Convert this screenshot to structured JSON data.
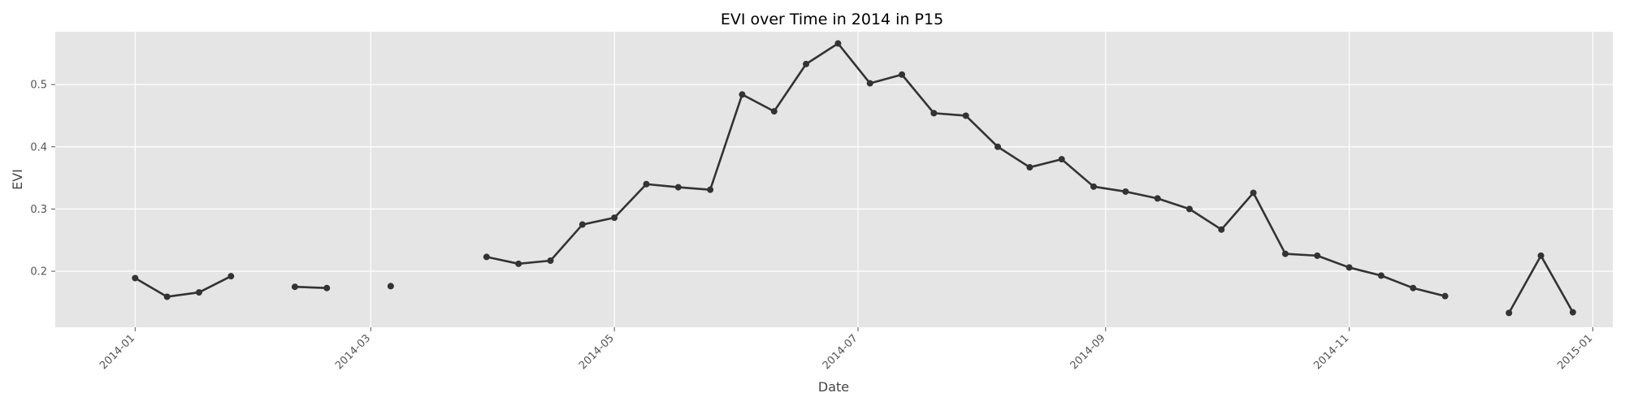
{
  "chart_data": {
    "type": "line",
    "title": "EVI over Time in 2014 in P15",
    "xlabel": "Date",
    "ylabel": "EVI",
    "x_axis_type": "date",
    "xlim": [
      "2013-12-12",
      "2015-01-06"
    ],
    "ylim": [
      0.11,
      0.585
    ],
    "grid": true,
    "x_ticks": [
      "2014-01",
      "2014-03",
      "2014-05",
      "2014-07",
      "2014-09",
      "2014-11",
      "2015-01"
    ],
    "y_ticks": [
      0.2,
      0.3,
      0.4,
      0.5
    ],
    "series": [
      {
        "color": "#333333",
        "points": [
          {
            "x": "2014-01-01",
            "y": 0.189
          },
          {
            "x": "2014-01-09",
            "y": 0.159
          },
          {
            "x": "2014-01-17",
            "y": 0.166
          },
          {
            "x": "2014-01-25",
            "y": 0.192
          },
          {
            "x": "2014-02-02",
            "y": null
          },
          {
            "x": "2014-02-10",
            "y": 0.175
          },
          {
            "x": "2014-02-18",
            "y": 0.173
          },
          {
            "x": "2014-02-26",
            "y": null
          },
          {
            "x": "2014-03-06",
            "y": 0.176
          },
          {
            "x": "2014-03-14",
            "y": null
          },
          {
            "x": "2014-03-22",
            "y": null
          },
          {
            "x": "2014-03-30",
            "y": 0.223
          },
          {
            "x": "2014-04-07",
            "y": 0.212
          },
          {
            "x": "2014-04-15",
            "y": 0.217
          },
          {
            "x": "2014-04-23",
            "y": 0.275
          },
          {
            "x": "2014-05-01",
            "y": 0.286
          },
          {
            "x": "2014-05-09",
            "y": 0.34
          },
          {
            "x": "2014-05-17",
            "y": 0.335
          },
          {
            "x": "2014-05-25",
            "y": 0.331
          },
          {
            "x": "2014-06-02",
            "y": 0.484
          },
          {
            "x": "2014-06-10",
            "y": 0.457
          },
          {
            "x": "2014-06-18",
            "y": 0.533
          },
          {
            "x": "2014-06-26",
            "y": 0.566
          },
          {
            "x": "2014-07-04",
            "y": 0.502
          },
          {
            "x": "2014-07-12",
            "y": 0.516
          },
          {
            "x": "2014-07-20",
            "y": 0.454
          },
          {
            "x": "2014-07-28",
            "y": 0.45
          },
          {
            "x": "2014-08-05",
            "y": 0.4
          },
          {
            "x": "2014-08-13",
            "y": 0.367
          },
          {
            "x": "2014-08-21",
            "y": 0.38
          },
          {
            "x": "2014-08-29",
            "y": 0.336
          },
          {
            "x": "2014-09-06",
            "y": 0.328
          },
          {
            "x": "2014-09-14",
            "y": 0.317
          },
          {
            "x": "2014-09-22",
            "y": 0.3
          },
          {
            "x": "2014-09-30",
            "y": 0.267
          },
          {
            "x": "2014-10-08",
            "y": 0.326
          },
          {
            "x": "2014-10-16",
            "y": 0.228
          },
          {
            "x": "2014-10-24",
            "y": 0.225
          },
          {
            "x": "2014-11-01",
            "y": 0.206
          },
          {
            "x": "2014-11-09",
            "y": 0.193
          },
          {
            "x": "2014-11-17",
            "y": 0.173
          },
          {
            "x": "2014-11-25",
            "y": 0.16
          },
          {
            "x": "2014-12-03",
            "y": null
          },
          {
            "x": "2014-12-11",
            "y": 0.133
          },
          {
            "x": "2014-12-19",
            "y": 0.225
          },
          {
            "x": "2014-12-27",
            "y": 0.134
          }
        ]
      }
    ]
  }
}
